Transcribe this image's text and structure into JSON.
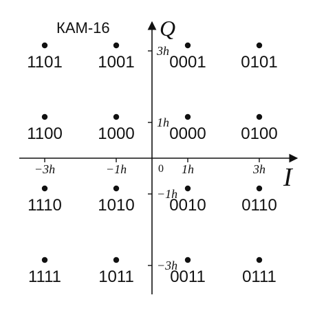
{
  "diagram": {
    "title": "КАМ-16",
    "axis_i": "I",
    "axis_q": "Q",
    "origin_label": "0",
    "i_ticks": [
      {
        "value": -3,
        "label": "−3h"
      },
      {
        "value": -1,
        "label": "−1h"
      },
      {
        "value": 1,
        "label": "1h"
      },
      {
        "value": 3,
        "label": "3h"
      }
    ],
    "q_ticks": [
      {
        "value": 3,
        "label": "3h"
      },
      {
        "value": 1,
        "label": "1h"
      },
      {
        "value": -1,
        "label": "−1h"
      },
      {
        "value": -3,
        "label": "−3h"
      }
    ],
    "points": [
      {
        "i": -3,
        "q": 3,
        "code": "1101"
      },
      {
        "i": -1,
        "q": 3,
        "code": "1001"
      },
      {
        "i": 1,
        "q": 3,
        "code": "0001"
      },
      {
        "i": 3,
        "q": 3,
        "code": "0101"
      },
      {
        "i": -3,
        "q": 1,
        "code": "1100"
      },
      {
        "i": -1,
        "q": 1,
        "code": "1000"
      },
      {
        "i": 1,
        "q": 1,
        "code": "0000"
      },
      {
        "i": 3,
        "q": 1,
        "code": "0100"
      },
      {
        "i": -3,
        "q": -1,
        "code": "1110"
      },
      {
        "i": -1,
        "q": -1,
        "code": "1010"
      },
      {
        "i": 1,
        "q": -1,
        "code": "0010"
      },
      {
        "i": 3,
        "q": -1,
        "code": "0110"
      },
      {
        "i": -3,
        "q": -3,
        "code": "1111"
      },
      {
        "i": -1,
        "q": -3,
        "code": "1011"
      },
      {
        "i": 1,
        "q": -3,
        "code": "0011"
      },
      {
        "i": 3,
        "q": -3,
        "code": "0111"
      }
    ]
  }
}
